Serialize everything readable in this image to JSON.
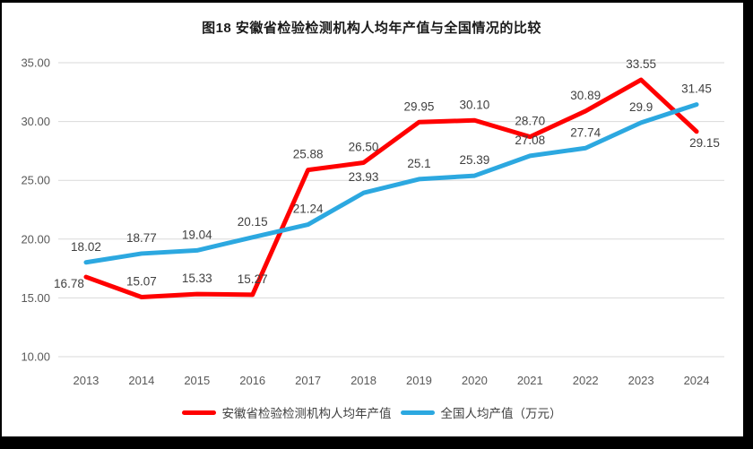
{
  "page": {
    "background": "#ffffff",
    "edge_border_color": "#000000"
  },
  "chart_data": {
    "type": "line",
    "title": "图18 安徽省检验检测机构人均年产值与全国情况的比较",
    "categories": [
      "2013",
      "2014",
      "2015",
      "2016",
      "2017",
      "2018",
      "2019",
      "2020",
      "2021",
      "2022",
      "2023",
      "2024"
    ],
    "series": [
      {
        "key": "anhui",
        "name": "安徽省检验检测机构人均年产值",
        "color": "#FF0000",
        "values": [
          16.78,
          15.07,
          15.33,
          15.27,
          25.88,
          26.5,
          29.95,
          30.1,
          28.7,
          30.89,
          33.55,
          29.15
        ],
        "labels": [
          "16.78",
          "15.07",
          "15.33",
          "15.27",
          "25.88",
          "26.50",
          "29.95",
          "30.10",
          "28.70",
          "30.89",
          "33.55",
          "29.15"
        ]
      },
      {
        "key": "national",
        "name": "全国人均产值（万元）",
        "color": "#2CA8E0",
        "values": [
          18.02,
          18.77,
          19.04,
          20.15,
          21.24,
          23.93,
          25.1,
          25.39,
          27.08,
          27.74,
          29.9,
          31.45
        ],
        "labels": [
          "18.02",
          "18.77",
          "19.04",
          "20.15",
          "21.24",
          "23.93",
          "25.1",
          "25.39",
          "27.08",
          "27.74",
          "29.9",
          "31.45"
        ]
      }
    ],
    "y_axis": {
      "min": 10,
      "max": 35,
      "tick_labels": [
        "10.00",
        "15.00",
        "20.00",
        "25.00",
        "30.00",
        "35.00"
      ]
    },
    "grid": true,
    "legend_position": "bottom",
    "gridline_color": "#D9D9D9",
    "axis_label_color": "#595959",
    "data_label_color": "#404040"
  }
}
